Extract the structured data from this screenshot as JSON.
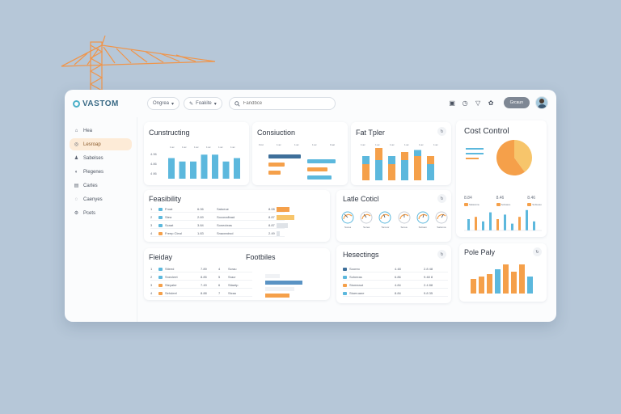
{
  "app": {
    "name": "VASTOM"
  },
  "topbar": {
    "filter1": "Ongrea",
    "filter2": "Foakite",
    "search_placeholder": "Fandbce",
    "user_label": "Grcaun",
    "icons": [
      "calendar-icon",
      "clock-icon",
      "bell-icon",
      "settings-icon"
    ]
  },
  "sidebar": {
    "items": [
      {
        "label": "Hea",
        "icon": "home-icon",
        "active": false
      },
      {
        "label": "Lesroap",
        "icon": "cost-icon",
        "active": true
      },
      {
        "label": "Sabelses",
        "icon": "users-icon",
        "active": false
      },
      {
        "label": "Piegenes",
        "icon": "progress-icon",
        "active": false
      },
      {
        "label": "Cartes",
        "icon": "chart-icon",
        "active": false
      },
      {
        "label": "Caenyes",
        "icon": "chat-icon",
        "active": false
      },
      {
        "label": "Pcets",
        "icon": "gear-icon",
        "active": false
      }
    ]
  },
  "cards": {
    "construction1": {
      "title": "Cunstructing",
      "ylabels": [
        "4.96",
        "4.86",
        "4 86"
      ],
      "xlabels": [
        "1:ac",
        "1:ac",
        "1:ac",
        "1:ac",
        "1:ac",
        "1:ac"
      ]
    },
    "construction2": {
      "title": "Consiuction",
      "xlabels": [
        "Fcst",
        "1:ac",
        "1:ac",
        "1:ac",
        "Foat"
      ]
    },
    "fat": {
      "title": "Fat Tpler",
      "xlabels": [
        "1:ac",
        "1:ac",
        "1:ac",
        "1:ac",
        "1:ac",
        "1:ac"
      ]
    },
    "cost": {
      "title": "Cost Control",
      "legend": [
        "8.84",
        "8.46",
        "8.46"
      ],
      "sublabels": [
        "Salaomia",
        "Soltuaso",
        "Soltuaso"
      ]
    },
    "feasibility": {
      "title": "Feasibility"
    },
    "late": {
      "title": "Latle Coticl",
      "gauges": [
        "Sorea",
        "Sorea",
        "Torosor",
        "Sorea",
        "Soltoan",
        "Salonna"
      ]
    },
    "friday": {
      "title": "Fieiday",
      "title2": "Footbiles"
    },
    "highlights": {
      "title": "Hesectings"
    },
    "pole": {
      "title": "Pole Paly"
    }
  },
  "tables": {
    "feasibility": [
      [
        "1",
        "Froat",
        "6.06",
        "Satoeue",
        "8.08"
      ],
      [
        "2",
        "Stea",
        "2.69",
        "Soconafinad",
        "8.87"
      ],
      [
        "3",
        "Scaat",
        "3.84",
        "Sonecteas",
        "8.87"
      ],
      [
        "4",
        "Freep Cleal",
        "1.83",
        "Snaceatrod",
        "2.49"
      ]
    ],
    "friday": [
      [
        "1",
        "Stieed",
        "7.89",
        "4",
        "Scrau"
      ],
      [
        "2",
        "Snecleet",
        "8.85",
        "5",
        "Sracr"
      ],
      [
        "3",
        "Steyaler",
        "7.49",
        "6",
        "Stiaetp"
      ],
      [
        "4",
        "Sehdeel",
        "8.88",
        "7",
        "Stcau"
      ]
    ],
    "highlights": [
      [
        "Sooreo",
        "4.48",
        "2.8 48"
      ],
      [
        "Soheeas",
        "6.86",
        "9.48 8"
      ],
      [
        "Stomeaut",
        "4.84",
        "2.4 88"
      ],
      [
        "Stueruane",
        "8.84",
        "9.8 35"
      ]
    ]
  },
  "chart_data": [
    {
      "type": "bar",
      "title": "Cunstructing",
      "categories": [
        "1",
        "2",
        "3",
        "4",
        "5",
        "6",
        "7"
      ],
      "values": [
        12,
        10,
        10,
        14,
        14,
        10,
        12
      ],
      "ylim": [
        0,
        16
      ]
    },
    {
      "type": "bar",
      "title": "Consiuction",
      "categories": [
        "1",
        "2",
        "3",
        "4",
        "5",
        "6"
      ],
      "series": [
        {
          "name": "",
          "values": [
            8,
            4,
            3,
            7,
            5,
            6
          ]
        }
      ],
      "orientation": "horizontal"
    },
    {
      "type": "bar",
      "title": "Fat Tpler",
      "categories": [
        "1",
        "2",
        "3",
        "4",
        "5",
        "6"
      ],
      "series": [
        {
          "name": "",
          "values": [
            8,
            10,
            8,
            10,
            12,
            8
          ]
        },
        {
          "name": "",
          "values": [
            4,
            6,
            4,
            4,
            3,
            4
          ]
        }
      ],
      "stacked": true
    },
    {
      "type": "pie",
      "title": "Cost Control",
      "values": [
        40,
        60
      ]
    },
    {
      "type": "bar",
      "title": "Cost Control",
      "categories": [
        "1",
        "2",
        "3",
        "4",
        "5",
        "6",
        "7",
        "8",
        "9",
        "10"
      ],
      "values": [
        5,
        6,
        4,
        8,
        5,
        7,
        3,
        6,
        9,
        4
      ]
    },
    {
      "type": "bar",
      "title": "Pole Paly",
      "categories": [
        "1",
        "2",
        "3",
        "4",
        "5",
        "6",
        "7",
        "8"
      ],
      "values": [
        6,
        7,
        8,
        10,
        12,
        9,
        12,
        7
      ]
    }
  ],
  "colors": {
    "blue": "#5cb8dd",
    "orange": "#f5a04a",
    "navy": "#3e6f9a",
    "accent": "#f3a255"
  }
}
